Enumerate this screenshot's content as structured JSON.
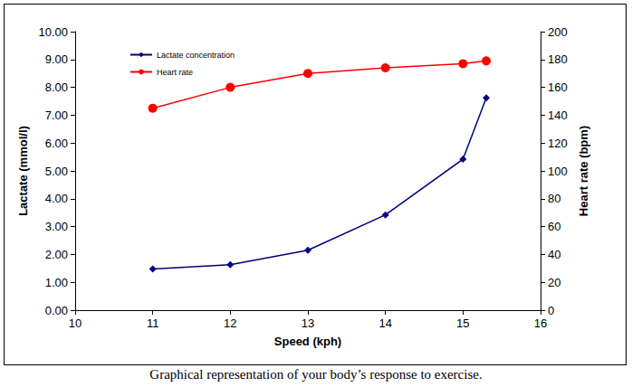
{
  "chart_data": {
    "type": "line",
    "title": "Graphical representation of your body’s response to exercise.",
    "x_label": "Speed (kph)",
    "y_label": "Lactate (mmol/l)",
    "y2_label": "Heart rate (bpm)",
    "x": [
      11,
      12,
      13,
      14,
      15,
      15.3
    ],
    "series": [
      {
        "name": "Lactate concentration",
        "color": "#000080",
        "marker": "diamond",
        "values": [
          1.48,
          1.63,
          2.15,
          3.42,
          5.42,
          7.62
        ]
      },
      {
        "name": "Heart rate",
        "color": "#ff0000",
        "marker": "circle",
        "axis": "y2",
        "values": [
          145,
          160,
          170,
          174,
          177,
          179
        ]
      }
    ],
    "xlim": [
      10,
      16
    ],
    "xticks": [
      10,
      11,
      12,
      13,
      14,
      15,
      16
    ],
    "ylim": [
      0,
      10
    ],
    "yticks": [
      {
        "value": 0,
        "label": "0.00"
      },
      {
        "value": 1,
        "label": "1.00"
      },
      {
        "value": 2,
        "label": "2.00"
      },
      {
        "value": 3,
        "label": "3.00"
      },
      {
        "value": 4,
        "label": "4.00"
      },
      {
        "value": 5,
        "label": "5.00"
      },
      {
        "value": 6,
        "label": "6.00"
      },
      {
        "value": 7,
        "label": "7.00"
      },
      {
        "value": 8,
        "label": "8.00"
      },
      {
        "value": 9,
        "label": "9.00"
      },
      {
        "value": 10,
        "label": "10.00"
      }
    ],
    "y2lim": [
      0,
      200
    ],
    "y2ticks": [
      0,
      20,
      40,
      60,
      80,
      100,
      120,
      140,
      160,
      180,
      200
    ],
    "legend": "upper left",
    "grid": false
  }
}
